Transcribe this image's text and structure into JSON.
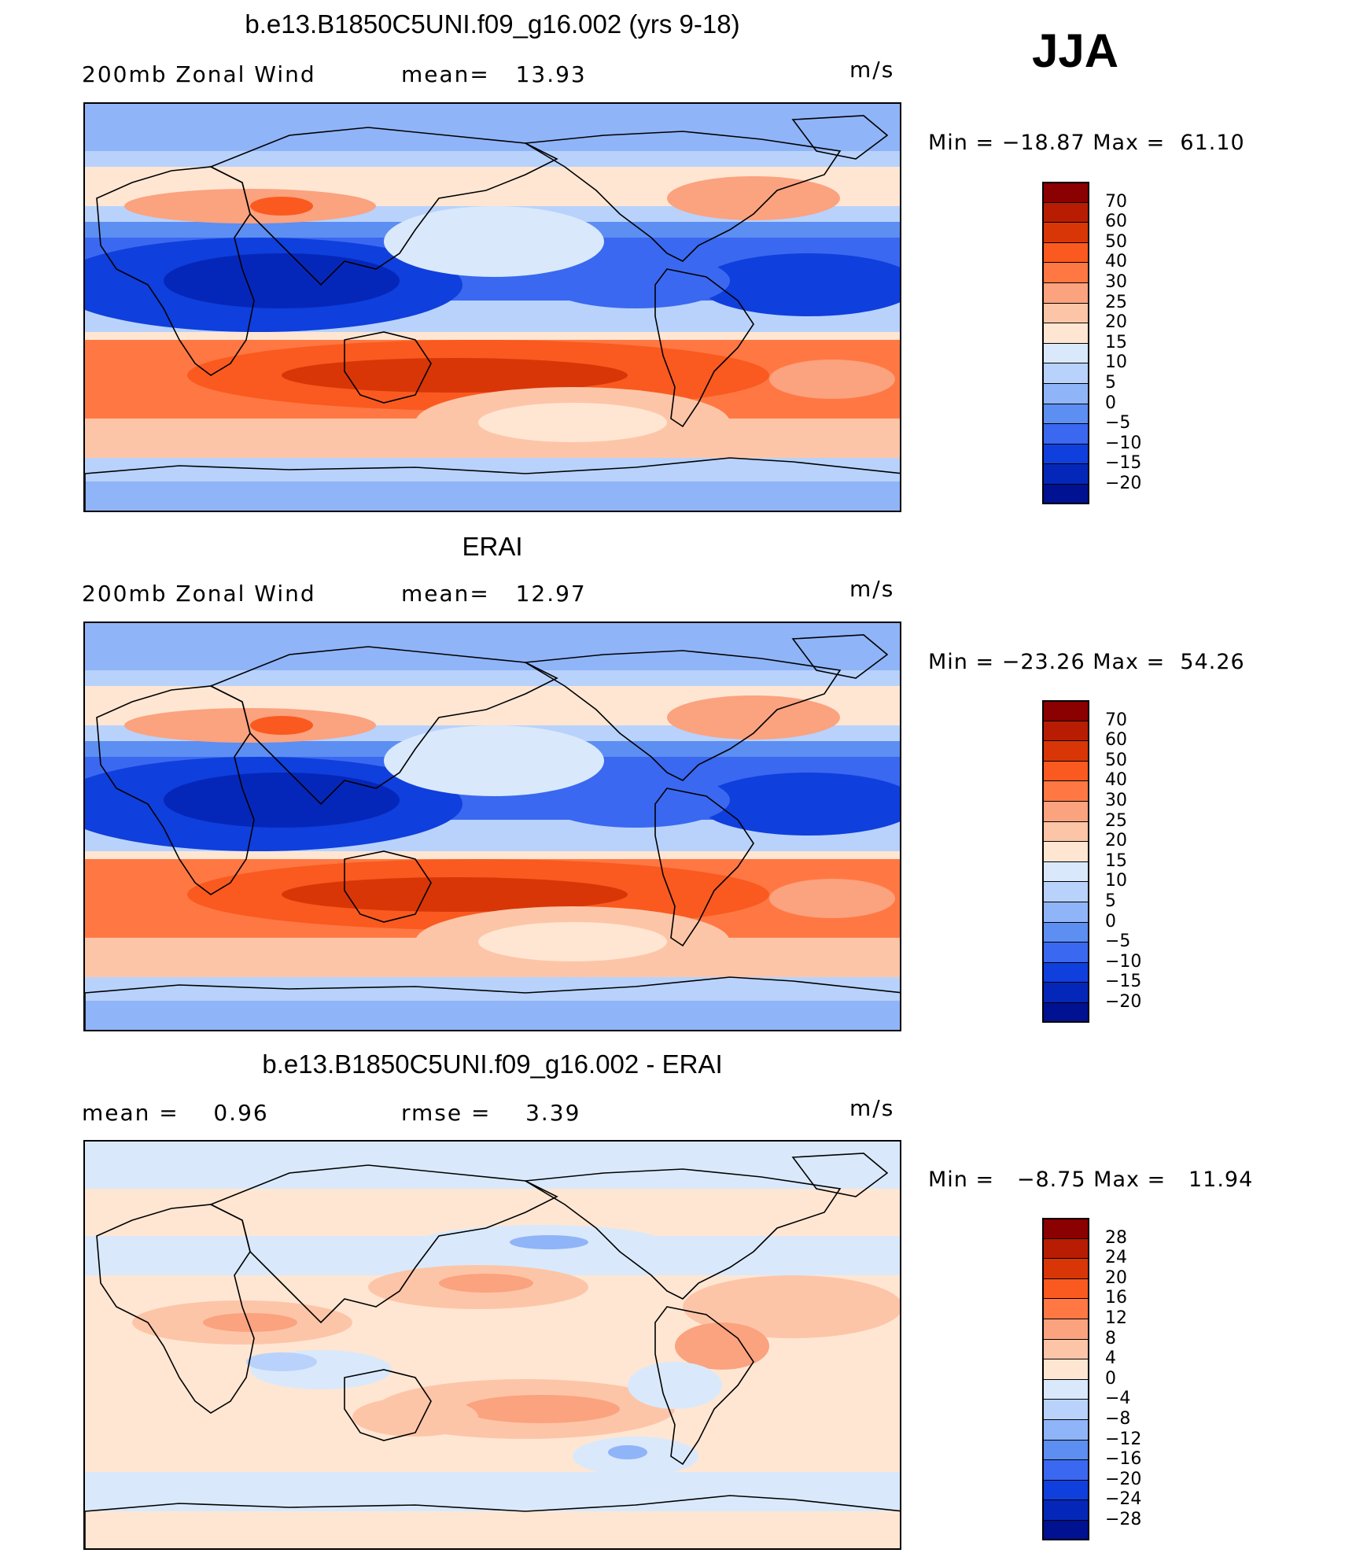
{
  "season": "JJA",
  "units": "m/s",
  "panels": [
    {
      "title": "b.e13.B1850C5UNI.f09_g16.002 (yrs 9-18)",
      "left_label": "200mb Zonal Wind",
      "center_label": "mean=   13.93",
      "min_max": "Min = −18.87 Max =  61.10",
      "palette": "full",
      "levels": [
        "70",
        "60",
        "50",
        "40",
        "30",
        "25",
        "20",
        "15",
        "10",
        "5",
        "0",
        "−5",
        "−10",
        "−15",
        "−20"
      ],
      "colors": [
        "#8b0000",
        "#b81d03",
        "#d93608",
        "#fa5a1f",
        "#ff7843",
        "#fba27f",
        "#fdc5a8",
        "#ffe6d3",
        "#d9e9fb",
        "#b8d2fb",
        "#90b4f8",
        "#5d8ef2",
        "#3a68f0",
        "#0f3fdd",
        "#0527b9",
        "#001192"
      ]
    },
    {
      "title": "ERAI",
      "left_label": "200mb Zonal Wind",
      "center_label": "mean=   12.97",
      "min_max": "Min = −23.26 Max =  54.26",
      "palette": "full",
      "levels": [
        "70",
        "60",
        "50",
        "40",
        "30",
        "25",
        "20",
        "15",
        "10",
        "5",
        "0",
        "−5",
        "−10",
        "−15",
        "−20"
      ],
      "colors": [
        "#8b0000",
        "#b81d03",
        "#d93608",
        "#fa5a1f",
        "#ff7843",
        "#fba27f",
        "#fdc5a8",
        "#ffe6d3",
        "#d9e9fb",
        "#b8d2fb",
        "#90b4f8",
        "#5d8ef2",
        "#3a68f0",
        "#0f3fdd",
        "#0527b9",
        "#001192"
      ]
    },
    {
      "title": "b.e13.B1850C5UNI.f09_g16.002 - ERAI",
      "left_label": "mean =    0.96",
      "center_label": "rmse =    3.39",
      "min_max": "Min =   −8.75 Max =   11.94",
      "palette": "diff",
      "levels": [
        "28",
        "24",
        "20",
        "16",
        "12",
        "8",
        "4",
        "0",
        "−4",
        "−8",
        "−12",
        "−16",
        "−20",
        "−24",
        "−28"
      ],
      "colors": [
        "#8b0000",
        "#b81d03",
        "#d93608",
        "#fa5a1f",
        "#ff7843",
        "#fba27f",
        "#fdc5a8",
        "#ffe6d3",
        "#d9e9fb",
        "#b8d2fb",
        "#90b4f8",
        "#5d8ef2",
        "#3a68f0",
        "#0f3fdd",
        "#0527b9",
        "#001192"
      ]
    }
  ]
}
